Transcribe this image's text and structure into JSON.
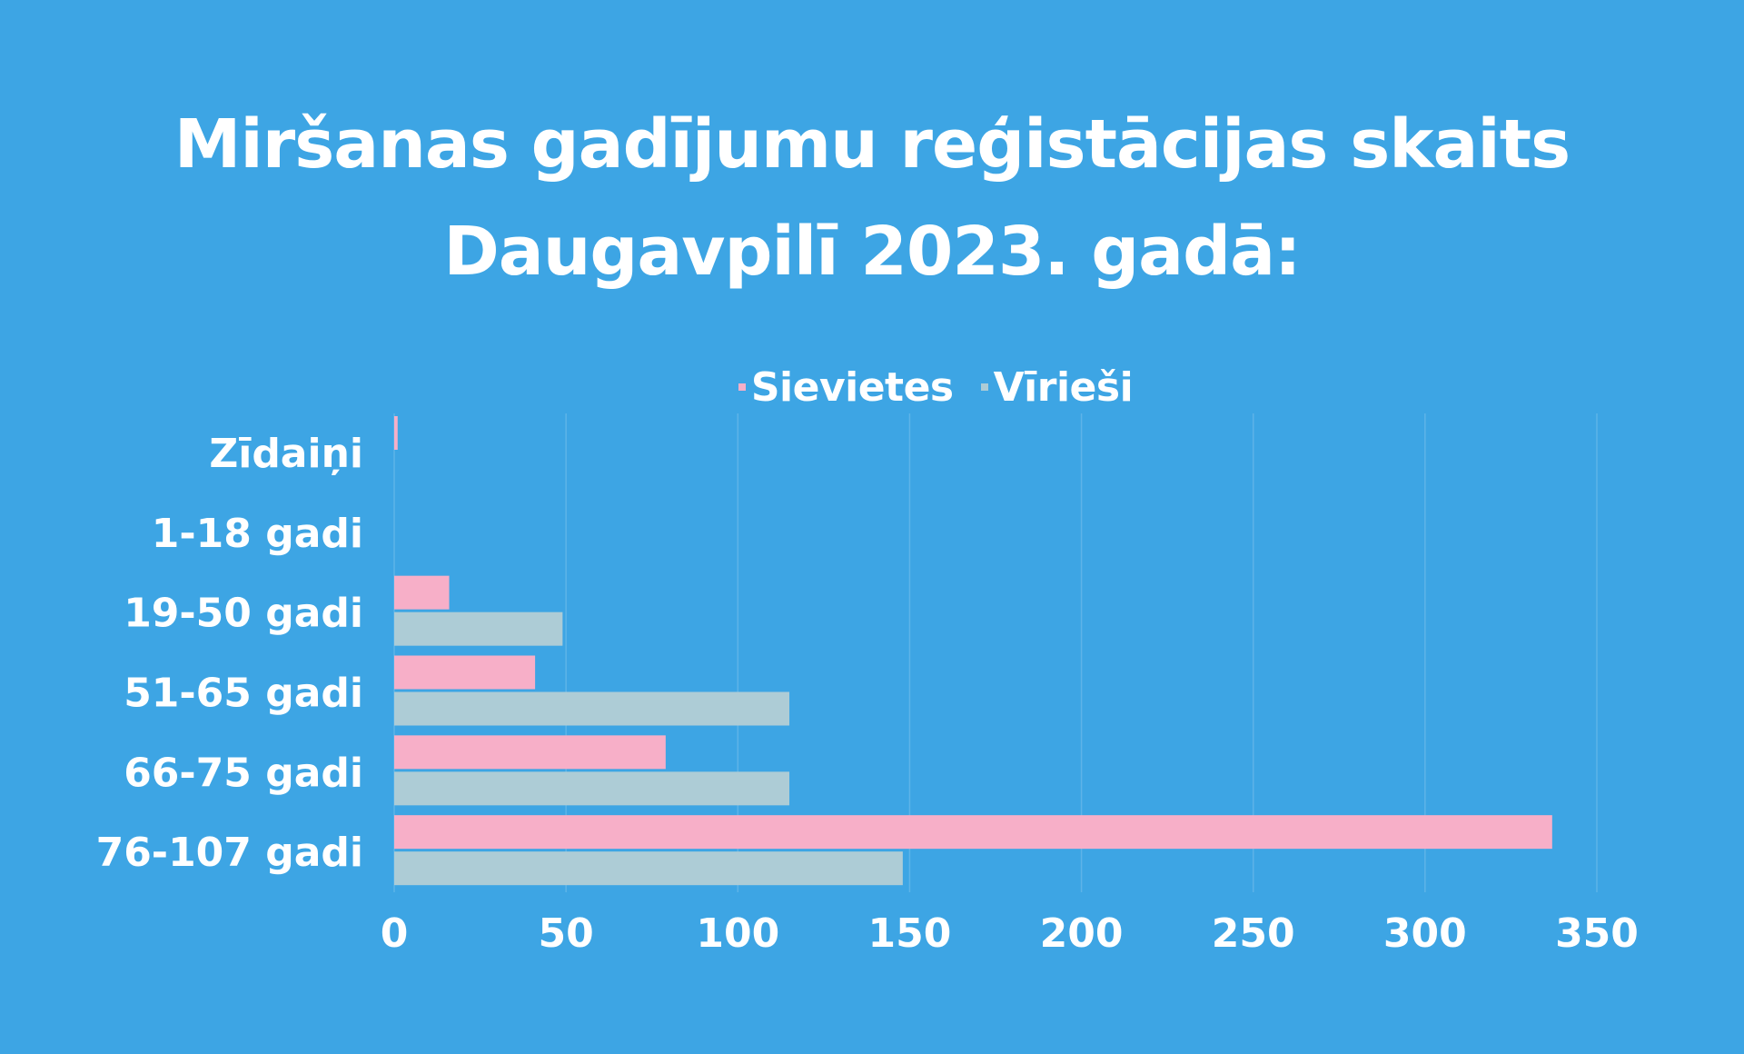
{
  "title": {
    "line1": "Miršanas gadījumu reģistācijas skaits",
    "line2": "Daugavpilī 2023. gadā:"
  },
  "colors": {
    "background": "#3DA5E4",
    "sievietes": "#F7AFC8",
    "virieshi": "#ADCCD6",
    "gridline": "#5DB3E8",
    "text": "#FFFFFF"
  },
  "chart_data": {
    "type": "bar",
    "orientation": "horizontal",
    "categories": [
      "Zīdaiņi",
      "1-18 gadi",
      "19-50 gadi",
      "51-65 gadi",
      "66-75 gadi",
      "76-107 gadi"
    ],
    "series": [
      {
        "name": "Sievietes",
        "values": [
          1,
          0,
          16,
          41,
          79,
          337
        ]
      },
      {
        "name": "Vīrieši",
        "values": [
          0,
          0,
          49,
          115,
          115,
          148
        ]
      }
    ],
    "xticks": [
      "0",
      "50",
      "100",
      "150",
      "200",
      "250",
      "300",
      "350"
    ],
    "xlim": [
      0,
      350
    ],
    "grid": "vertical",
    "legend_position": "top"
  }
}
